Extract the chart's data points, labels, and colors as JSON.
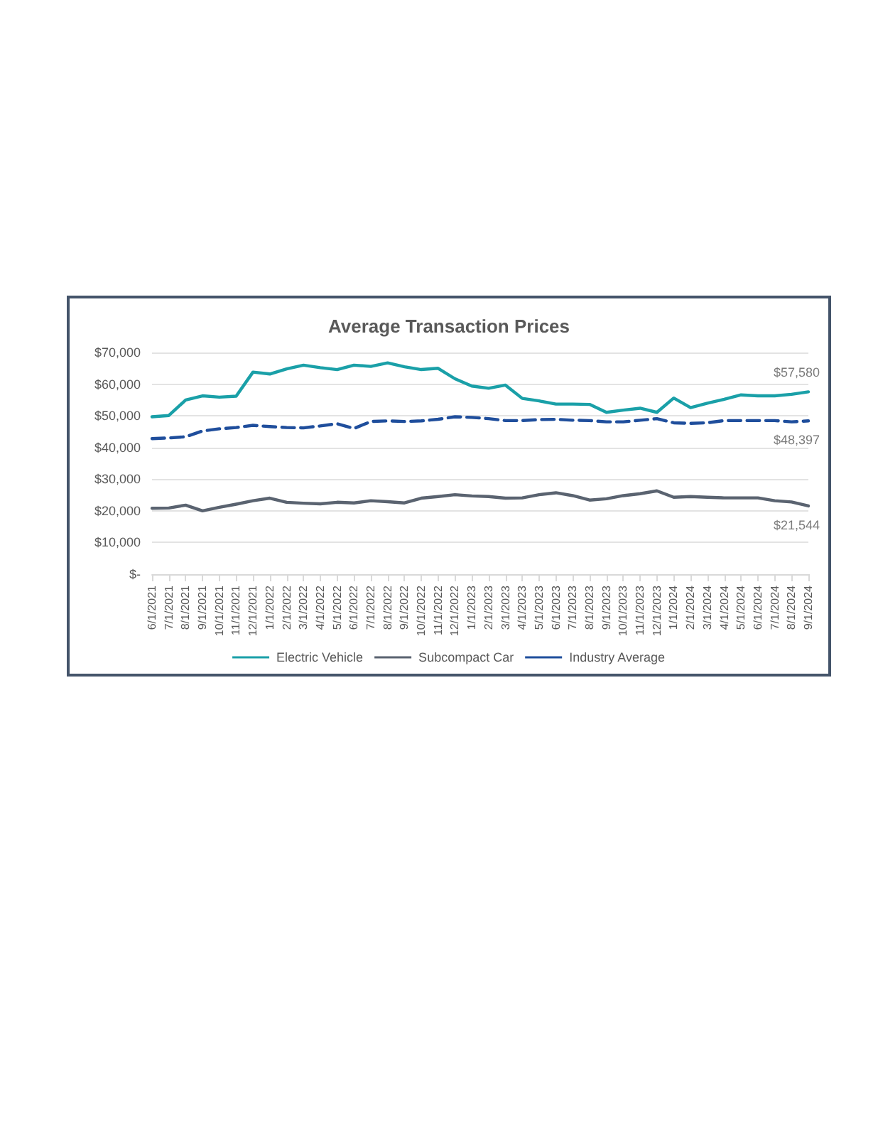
{
  "chart_data": {
    "type": "line",
    "title": "Average Transaction Prices",
    "categories": [
      "6/1/2021",
      "7/1/2021",
      "8/1/2021",
      "9/1/2021",
      "10/1/2021",
      "11/1/2021",
      "12/1/2021",
      "1/1/2022",
      "2/1/2022",
      "3/1/2022",
      "4/1/2022",
      "5/1/2022",
      "6/1/2022",
      "7/1/2022",
      "8/1/2022",
      "9/1/2022",
      "10/1/2022",
      "11/1/2022",
      "12/1/2022",
      "1/1/2023",
      "2/1/2023",
      "3/1/2023",
      "4/1/2023",
      "5/1/2023",
      "6/1/2023",
      "7/1/2023",
      "8/1/2023",
      "9/1/2023",
      "10/1/2023",
      "11/1/2023",
      "12/1/2023",
      "1/1/2024",
      "2/1/2024",
      "3/1/2024",
      "4/1/2024",
      "5/1/2024",
      "6/1/2024",
      "7/1/2024",
      "8/1/2024",
      "9/1/2024"
    ],
    "series": [
      {
        "name": "Electric Vehicle",
        "color": "#1aa0a8",
        "line_style": "solid",
        "values": [
          49700,
          50100,
          55000,
          56300,
          55900,
          56200,
          63800,
          63200,
          64800,
          66000,
          65200,
          64600,
          66000,
          65600,
          66700,
          65500,
          64600,
          65000,
          61700,
          59400,
          58700,
          59700,
          55500,
          54700,
          53700,
          53700,
          53600,
          51100,
          51800,
          52400,
          51100,
          55600,
          52600,
          54000,
          55200,
          56600,
          56300,
          56300,
          56800,
          57580
        ]
      },
      {
        "name": "Subcompact Car",
        "color": "#5a6370",
        "line_style": "solid",
        "values": [
          20800,
          20900,
          21800,
          20000,
          21100,
          22100,
          23200,
          24000,
          22700,
          22400,
          22200,
          22700,
          22500,
          23200,
          22900,
          22500,
          24000,
          24500,
          25100,
          24700,
          24500,
          24000,
          24100,
          25100,
          25700,
          24800,
          23400,
          23800,
          24800,
          25400,
          26300,
          24300,
          24500,
          24300,
          24100,
          24100,
          24100,
          23200,
          22800,
          21544
        ]
      },
      {
        "name": "Industry Average",
        "color": "#1f4e9c",
        "line_style": "dashed",
        "values": [
          42800,
          43000,
          43400,
          45200,
          45900,
          46300,
          47000,
          46600,
          46300,
          46200,
          46800,
          47500,
          46000,
          48200,
          48400,
          48200,
          48400,
          48900,
          49700,
          49500,
          49100,
          48500,
          48500,
          48800,
          48900,
          48600,
          48500,
          48100,
          48100,
          48600,
          49100,
          47800,
          47600,
          47800,
          48500,
          48500,
          48500,
          48500,
          48100,
          48397
        ]
      }
    ],
    "ylim": [
      0,
      70000
    ],
    "yticks": [
      {
        "value": 0,
        "label": "$-"
      },
      {
        "value": 10000,
        "label": "$10,000"
      },
      {
        "value": 20000,
        "label": "$20,000"
      },
      {
        "value": 30000,
        "label": "$30,000"
      },
      {
        "value": 40000,
        "label": "$40,000"
      },
      {
        "value": 50000,
        "label": "$50,000"
      },
      {
        "value": 60000,
        "label": "$60,000"
      },
      {
        "value": 70000,
        "label": "$70,000"
      }
    ],
    "annotations": [
      {
        "text": "$57,580",
        "x": "9/1/2024",
        "y": 57580
      },
      {
        "text": "$48,397",
        "x": "9/1/2024",
        "y": 48397
      },
      {
        "text": "$21,544",
        "x": "9/1/2024",
        "y": 21544
      }
    ],
    "grid": "y",
    "legend": "bottom",
    "marker": "none"
  }
}
